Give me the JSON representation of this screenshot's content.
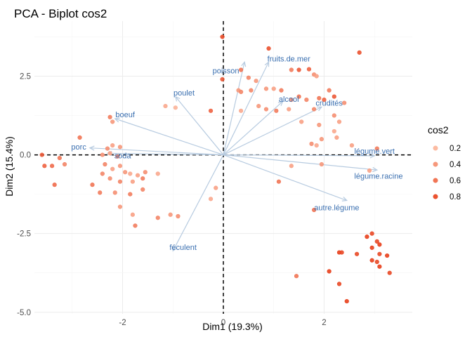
{
  "chart_data": {
    "type": "scatter",
    "title": "PCA - Biplot cos2",
    "xlabel": "Dim1 (19.3%)",
    "ylabel": "Dim2 (15.4%)",
    "xlim": [
      -3.75,
      3.75
    ],
    "ylim": [
      -5.05,
      4.25
    ],
    "x_ticks": [
      {
        "value": -2,
        "label": "-2"
      },
      {
        "value": 0,
        "label": "0"
      },
      {
        "value": 2,
        "label": "2"
      }
    ],
    "y_ticks": [
      {
        "value": -5,
        "label": "-5.0"
      },
      {
        "value": -2.5,
        "label": "-2.5"
      },
      {
        "value": 0,
        "label": "0.0"
      },
      {
        "value": 2.5,
        "label": "2.5"
      }
    ],
    "grid": true,
    "legend": {
      "title": "cos2",
      "position": "right",
      "entries": [
        {
          "label": "0.2",
          "value": 0.2
        },
        {
          "label": "0.4",
          "value": 0.4
        },
        {
          "label": "0.6",
          "value": 0.6
        },
        {
          "label": "0.8",
          "value": 0.8
        }
      ]
    },
    "colors": {
      "low": "#fcbba1",
      "high": "#e8401c",
      "arrow": "#b7cbe0",
      "label": "#3a6fb0"
    },
    "variables": [
      {
        "name": "fruits.de.mer",
        "x": 0.9,
        "y": 2.95,
        "lx": 1.3,
        "ly": 3.06
      },
      {
        "name": "poisson",
        "x": 0.42,
        "y": 2.95,
        "lx": 0.05,
        "ly": 2.68
      },
      {
        "name": "poulet",
        "x": -0.95,
        "y": 1.85,
        "lx": -0.78,
        "ly": 1.97
      },
      {
        "name": "boeuf",
        "x": -2.15,
        "y": 1.15,
        "lx": -1.95,
        "ly": 1.28
      },
      {
        "name": "alcool",
        "x": 1.18,
        "y": 1.7,
        "lx": 1.3,
        "ly": 1.77
      },
      {
        "name": "crudités",
        "x": 1.95,
        "y": 1.52,
        "lx": 2.1,
        "ly": 1.65
      },
      {
        "name": "porc",
        "x": -2.65,
        "y": 0.22,
        "lx": -2.87,
        "ly": 0.26
      },
      {
        "name": "soda",
        "x": -2.3,
        "y": 0.05,
        "lx": -2.0,
        "ly": -0.02
      },
      {
        "name": "légume.vert",
        "x": 3.0,
        "y": -0.03,
        "lx": 3.0,
        "ly": 0.12
      },
      {
        "name": "légume.racine",
        "x": 3.05,
        "y": -0.48,
        "lx": 3.08,
        "ly": -0.67
      },
      {
        "name": "autre.légume",
        "x": 2.45,
        "y": -1.45,
        "lx": 2.25,
        "ly": -1.67
      },
      {
        "name": "féculent",
        "x": -1.0,
        "y": -3.05,
        "lx": -0.8,
        "ly": -2.93
      }
    ],
    "points": [
      {
        "x": -0.02,
        "y": 3.75,
        "cos2": 0.85
      },
      {
        "x": 0.9,
        "y": 3.38,
        "cos2": 0.8
      },
      {
        "x": 2.7,
        "y": 3.25,
        "cos2": 0.8
      },
      {
        "x": 0.35,
        "y": 2.7,
        "cos2": 0.6
      },
      {
        "x": 1.35,
        "y": 2.7,
        "cos2": 0.55
      },
      {
        "x": 1.5,
        "y": 2.7,
        "cos2": 0.75
      },
      {
        "x": 1.7,
        "y": 2.72,
        "cos2": 0.7
      },
      {
        "x": 1.8,
        "y": 2.55,
        "cos2": 0.45
      },
      {
        "x": 1.85,
        "y": 2.5,
        "cos2": 0.35
      },
      {
        "x": 0.5,
        "y": 2.45,
        "cos2": 0.5
      },
      {
        "x": 0.65,
        "y": 2.35,
        "cos2": 0.4
      },
      {
        "x": -0.02,
        "y": 2.4,
        "cos2": 0.75
      },
      {
        "x": 0.55,
        "y": 2.05,
        "cos2": 0.5
      },
      {
        "x": 0.85,
        "y": 2.1,
        "cos2": 0.4
      },
      {
        "x": 1.0,
        "y": 2.1,
        "cos2": 0.35
      },
      {
        "x": 1.15,
        "y": 2.05,
        "cos2": 0.55
      },
      {
        "x": 1.35,
        "y": 1.75,
        "cos2": 0.45
      },
      {
        "x": 1.5,
        "y": 1.85,
        "cos2": 0.6
      },
      {
        "x": 1.65,
        "y": 1.75,
        "cos2": 0.5
      },
      {
        "x": 1.9,
        "y": 1.8,
        "cos2": 0.6
      },
      {
        "x": 2.0,
        "y": 1.75,
        "cos2": 0.7
      },
      {
        "x": 2.1,
        "y": 2.05,
        "cos2": 0.55
      },
      {
        "x": 2.2,
        "y": 1.85,
        "cos2": 0.75
      },
      {
        "x": 2.4,
        "y": 1.65,
        "cos2": 0.45
      },
      {
        "x": 1.05,
        "y": 1.4,
        "cos2": 0.55
      },
      {
        "x": 1.3,
        "y": 1.45,
        "cos2": 0.35
      },
      {
        "x": 1.8,
        "y": 1.45,
        "cos2": 0.5
      },
      {
        "x": 0.3,
        "y": 2.05,
        "cos2": 0.4
      },
      {
        "x": 0.35,
        "y": 2.0,
        "cos2": 0.5
      },
      {
        "x": 0.7,
        "y": 1.55,
        "cos2": 0.4
      },
      {
        "x": 0.35,
        "y": 1.4,
        "cos2": 0.3
      },
      {
        "x": 0.85,
        "y": 1.45,
        "cos2": 0.45
      },
      {
        "x": -0.25,
        "y": 1.4,
        "cos2": 0.7
      },
      {
        "x": -1.15,
        "y": 1.55,
        "cos2": 0.3
      },
      {
        "x": -0.95,
        "y": 1.5,
        "cos2": 0.25
      },
      {
        "x": 1.55,
        "y": 1.05,
        "cos2": 0.35
      },
      {
        "x": 2.2,
        "y": 1.25,
        "cos2": 0.45
      },
      {
        "x": 2.3,
        "y": 1.05,
        "cos2": 0.35
      },
      {
        "x": 1.9,
        "y": 0.95,
        "cos2": 0.4
      },
      {
        "x": 2.2,
        "y": 0.75,
        "cos2": 0.3
      },
      {
        "x": 2.25,
        "y": 0.55,
        "cos2": 0.35
      },
      {
        "x": 1.95,
        "y": 0.5,
        "cos2": 0.4
      },
      {
        "x": 1.75,
        "y": 0.35,
        "cos2": 0.45
      },
      {
        "x": 1.85,
        "y": 0.3,
        "cos2": 0.3
      },
      {
        "x": 2.55,
        "y": 0.3,
        "cos2": 0.35
      },
      {
        "x": 3.05,
        "y": 0.2,
        "cos2": 0.55
      },
      {
        "x": 1.95,
        "y": -0.3,
        "cos2": 0.4
      },
      {
        "x": 1.1,
        "y": -0.85,
        "cos2": 0.6
      },
      {
        "x": 1.35,
        "y": -0.35,
        "cos2": 0.35
      },
      {
        "x": 1.8,
        "y": -1.75,
        "cos2": 0.6
      },
      {
        "x": 2.9,
        "y": -0.5,
        "cos2": 0.35
      },
      {
        "x": -0.25,
        "y": -1.4,
        "cos2": 0.3
      },
      {
        "x": -1.05,
        "y": -1.9,
        "cos2": 0.4
      },
      {
        "x": -0.9,
        "y": -1.95,
        "cos2": 0.45
      },
      {
        "x": -1.3,
        "y": -2.0,
        "cos2": 0.5
      },
      {
        "x": -0.15,
        "y": -1.05,
        "cos2": 0.35
      },
      {
        "x": -2.25,
        "y": 1.2,
        "cos2": 0.55
      },
      {
        "x": -2.2,
        "y": 1.05,
        "cos2": 0.4
      },
      {
        "x": -2.85,
        "y": 0.55,
        "cos2": 0.6
      },
      {
        "x": -2.2,
        "y": 0.3,
        "cos2": 0.35
      },
      {
        "x": -2.3,
        "y": 0.2,
        "cos2": 0.45
      },
      {
        "x": -2.05,
        "y": 0.25,
        "cos2": 0.4
      },
      {
        "x": -2.4,
        "y": 0.0,
        "cos2": 0.45
      },
      {
        "x": -2.25,
        "y": 0.05,
        "cos2": 0.35
      },
      {
        "x": -2.1,
        "y": -0.05,
        "cos2": 0.5
      },
      {
        "x": -2.35,
        "y": -0.3,
        "cos2": 0.5
      },
      {
        "x": -2.05,
        "y": -0.35,
        "cos2": 0.4
      },
      {
        "x": -2.2,
        "y": -0.45,
        "cos2": 0.35
      },
      {
        "x": -1.95,
        "y": -0.55,
        "cos2": 0.4
      },
      {
        "x": -1.85,
        "y": -0.6,
        "cos2": 0.3
      },
      {
        "x": -1.7,
        "y": -0.65,
        "cos2": 0.35
      },
      {
        "x": -1.55,
        "y": -0.55,
        "cos2": 0.45
      },
      {
        "x": -1.3,
        "y": -0.6,
        "cos2": 0.3
      },
      {
        "x": -2.4,
        "y": -0.6,
        "cos2": 0.5
      },
      {
        "x": -2.25,
        "y": -0.75,
        "cos2": 0.45
      },
      {
        "x": -2.05,
        "y": -0.85,
        "cos2": 0.5
      },
      {
        "x": -1.8,
        "y": -0.85,
        "cos2": 0.35
      },
      {
        "x": -1.6,
        "y": -0.75,
        "cos2": 0.55
      },
      {
        "x": -2.6,
        "y": -0.95,
        "cos2": 0.6
      },
      {
        "x": -2.45,
        "y": -1.2,
        "cos2": 0.55
      },
      {
        "x": -2.15,
        "y": -1.2,
        "cos2": 0.45
      },
      {
        "x": -1.85,
        "y": -1.25,
        "cos2": 0.55
      },
      {
        "x": -1.6,
        "y": -1.1,
        "cos2": 0.5
      },
      {
        "x": -2.05,
        "y": -1.65,
        "cos2": 0.4
      },
      {
        "x": -1.8,
        "y": -1.9,
        "cos2": 0.35
      },
      {
        "x": -1.75,
        "y": -2.25,
        "cos2": 0.55
      },
      {
        "x": -3.6,
        "y": 0.0,
        "cos2": 0.75
      },
      {
        "x": -3.55,
        "y": -0.35,
        "cos2": 0.7
      },
      {
        "x": -3.4,
        "y": -0.35,
        "cos2": 0.65
      },
      {
        "x": -3.25,
        "y": -0.1,
        "cos2": 0.6
      },
      {
        "x": -3.15,
        "y": -0.3,
        "cos2": 0.5
      },
      {
        "x": -3.35,
        "y": -0.95,
        "cos2": 0.65
      },
      {
        "x": 2.85,
        "y": -2.6,
        "cos2": 0.9
      },
      {
        "x": 2.95,
        "y": -2.5,
        "cos2": 0.85
      },
      {
        "x": 3.05,
        "y": -2.75,
        "cos2": 0.85
      },
      {
        "x": 3.1,
        "y": -2.85,
        "cos2": 0.9
      },
      {
        "x": 2.95,
        "y": -2.95,
        "cos2": 0.9
      },
      {
        "x": 3.1,
        "y": -3.15,
        "cos2": 0.85
      },
      {
        "x": 3.25,
        "y": -3.2,
        "cos2": 0.9
      },
      {
        "x": 2.65,
        "y": -3.15,
        "cos2": 0.85
      },
      {
        "x": 2.3,
        "y": -3.1,
        "cos2": 0.9
      },
      {
        "x": 2.35,
        "y": -3.1,
        "cos2": 0.85
      },
      {
        "x": 2.95,
        "y": -3.35,
        "cos2": 0.9
      },
      {
        "x": 3.05,
        "y": -3.4,
        "cos2": 0.85
      },
      {
        "x": 3.1,
        "y": -3.55,
        "cos2": 0.9
      },
      {
        "x": 3.3,
        "y": -3.75,
        "cos2": 0.85
      },
      {
        "x": 2.1,
        "y": -3.7,
        "cos2": 0.9
      },
      {
        "x": 2.3,
        "y": -4.1,
        "cos2": 0.85
      },
      {
        "x": 2.45,
        "y": -4.65,
        "cos2": 0.9
      },
      {
        "x": 1.45,
        "y": -3.85,
        "cos2": 0.6
      }
    ]
  }
}
